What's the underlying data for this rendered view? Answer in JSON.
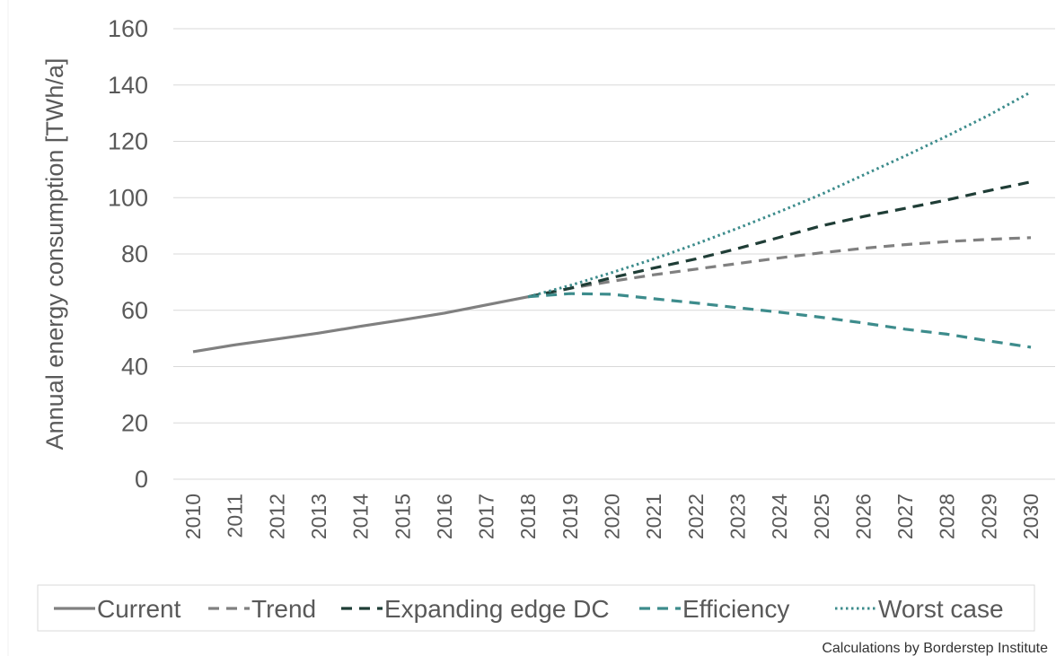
{
  "chart_data": {
    "type": "line",
    "title": "",
    "xlabel": "",
    "ylabel": "Annual energy consumption [TWh/a]",
    "ylim": [
      0,
      160
    ],
    "yticks": [
      0,
      20,
      40,
      60,
      80,
      100,
      120,
      140,
      160
    ],
    "grid": true,
    "legend_position": "bottom",
    "x": [
      "2010",
      "2011",
      "2012",
      "2013",
      "2014",
      "2015",
      "2016",
      "2017",
      "2018",
      "2019",
      "2020",
      "2021",
      "2022",
      "2023",
      "2024",
      "2025",
      "2026",
      "2027",
      "2028",
      "2029",
      "2030"
    ],
    "series": [
      {
        "name": "Current",
        "color": "#808080",
        "dash": "solid",
        "values": [
          45.3,
          47.7,
          49.8,
          51.9,
          54.3,
          56.6,
          59.0,
          61.9,
          64.8,
          null,
          null,
          null,
          null,
          null,
          null,
          null,
          null,
          null,
          null,
          null,
          null
        ]
      },
      {
        "name": "Trend",
        "color": "#808080",
        "dash": "dash",
        "values": [
          null,
          null,
          null,
          null,
          null,
          null,
          null,
          null,
          64.8,
          67.8,
          70.3,
          72.6,
          74.6,
          76.6,
          78.6,
          80.4,
          82.0,
          83.3,
          84.4,
          85.2,
          85.8
        ]
      },
      {
        "name": "Expanding edge DC",
        "color": "#1f3d36",
        "dash": "dash",
        "values": [
          null,
          null,
          null,
          null,
          null,
          null,
          null,
          null,
          64.8,
          67.8,
          71.6,
          75.0,
          78.2,
          81.9,
          85.9,
          90.0,
          93.3,
          96.2,
          99.2,
          102.5,
          105.6
        ]
      },
      {
        "name": "Efficiency",
        "color": "#3d8c8c",
        "dash": "dash",
        "values": [
          null,
          null,
          null,
          null,
          null,
          null,
          null,
          null,
          64.8,
          65.9,
          65.7,
          64.1,
          62.6,
          60.9,
          59.3,
          57.5,
          55.5,
          53.3,
          51.5,
          49.1,
          46.9
        ]
      },
      {
        "name": "Worst case",
        "color": "#3d8c8c",
        "dash": "dot",
        "values": [
          null,
          null,
          null,
          null,
          null,
          null,
          null,
          null,
          64.8,
          68.8,
          73.4,
          78.2,
          83.5,
          89.1,
          95.0,
          101.2,
          108.0,
          114.8,
          121.9,
          129.3,
          137.5
        ]
      }
    ]
  },
  "credit": "Calculations by Borderstep Institute"
}
